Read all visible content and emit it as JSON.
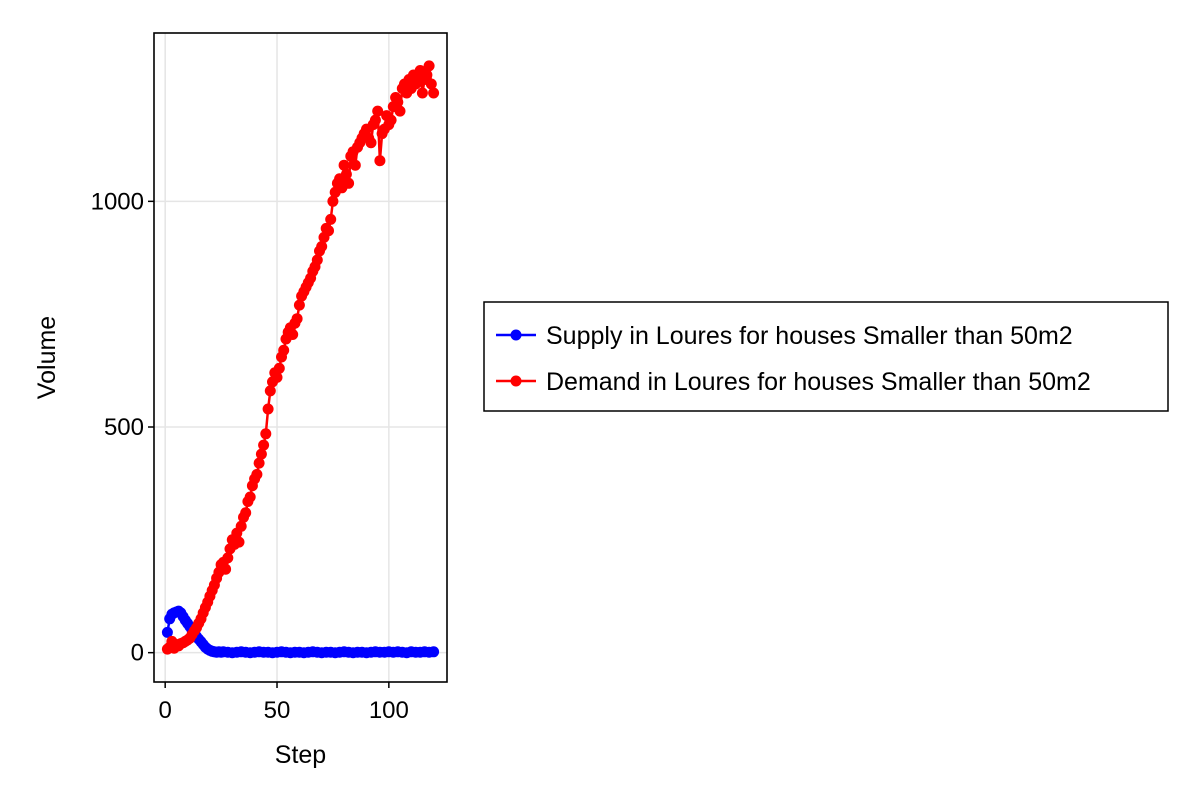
{
  "chart_data": {
    "type": "line",
    "xlabel": "Step",
    "ylabel": "Volume",
    "xlim": [
      -5,
      126
    ],
    "ylim": [
      -65,
      1373
    ],
    "x_ticks": [
      0,
      50,
      100
    ],
    "y_ticks": [
      0,
      500,
      1000
    ],
    "x_tick_labels": [
      "0",
      "50",
      "100"
    ],
    "y_tick_labels": [
      "0",
      "500",
      "1000"
    ],
    "grid": true,
    "legend_placement": "right",
    "series": [
      {
        "name": "Supply in Loures for houses Smaller than 50m2",
        "color": "#0000ff",
        "marker": "circle",
        "x": [
          1,
          2,
          3,
          4,
          5,
          6,
          7,
          8,
          9,
          10,
          11,
          12,
          13,
          14,
          15,
          16,
          17,
          18,
          19,
          20,
          21,
          22,
          23,
          24,
          25,
          26,
          28,
          30,
          32,
          34,
          36,
          38,
          40,
          42,
          44,
          46,
          48,
          50,
          52,
          54,
          56,
          58,
          60,
          62,
          64,
          66,
          68,
          70,
          72,
          74,
          76,
          78,
          80,
          82,
          84,
          86,
          88,
          90,
          92,
          94,
          96,
          98,
          100,
          102,
          104,
          106,
          108,
          110,
          112,
          114,
          116,
          118,
          120
        ],
        "y": [
          45,
          75,
          85,
          88,
          90,
          92,
          88,
          80,
          72,
          65,
          58,
          50,
          43,
          36,
          30,
          24,
          18,
          12,
          8,
          5,
          3,
          2,
          1,
          2,
          1,
          2,
          1,
          0,
          1,
          2,
          1,
          0,
          1,
          2,
          1,
          1,
          0,
          1,
          2,
          1,
          0,
          1,
          1,
          0,
          1,
          2,
          1,
          0,
          1,
          1,
          0,
          1,
          2,
          1,
          0,
          1,
          1,
          0,
          1,
          2,
          1,
          1,
          2,
          1,
          2,
          1,
          0,
          2,
          1,
          1,
          2,
          1,
          2
        ]
      },
      {
        "name": "Demand in Loures for houses Smaller than 50m2",
        "color": "#ff0000",
        "marker": "circle",
        "x": [
          1,
          2,
          3,
          4,
          5,
          6,
          7,
          8,
          9,
          10,
          11,
          12,
          13,
          14,
          15,
          16,
          17,
          18,
          19,
          20,
          21,
          22,
          23,
          24,
          25,
          26,
          27,
          28,
          29,
          30,
          31,
          32,
          33,
          34,
          35,
          36,
          37,
          38,
          39,
          40,
          41,
          42,
          43,
          44,
          45,
          46,
          47,
          48,
          49,
          50,
          51,
          52,
          53,
          54,
          55,
          56,
          57,
          58,
          59,
          60,
          61,
          62,
          63,
          64,
          65,
          66,
          67,
          68,
          69,
          70,
          71,
          72,
          73,
          74,
          75,
          76,
          77,
          78,
          79,
          80,
          81,
          82,
          83,
          84,
          85,
          86,
          87,
          88,
          89,
          90,
          91,
          92,
          93,
          94,
          95,
          96,
          97,
          98,
          99,
          100,
          101,
          102,
          103,
          104,
          105,
          106,
          107,
          108,
          109,
          110,
          111,
          112,
          113,
          114,
          115,
          116,
          117,
          118,
          119,
          120
        ],
        "y": [
          8,
          12,
          25,
          10,
          18,
          15,
          20,
          22,
          25,
          28,
          32,
          40,
          48,
          55,
          65,
          75,
          88,
          100,
          112,
          125,
          138,
          150,
          165,
          178,
          195,
          200,
          185,
          210,
          230,
          250,
          240,
          265,
          245,
          280,
          300,
          310,
          335,
          345,
          370,
          385,
          395,
          420,
          440,
          460,
          485,
          540,
          580,
          600,
          620,
          610,
          630,
          655,
          670,
          695,
          710,
          720,
          705,
          730,
          740,
          770,
          790,
          800,
          810,
          820,
          830,
          845,
          855,
          870,
          890,
          900,
          920,
          940,
          935,
          960,
          1000,
          1020,
          1040,
          1050,
          1030,
          1080,
          1060,
          1040,
          1100,
          1110,
          1080,
          1120,
          1130,
          1140,
          1150,
          1160,
          1140,
          1130,
          1170,
          1180,
          1200,
          1090,
          1150,
          1160,
          1190,
          1170,
          1180,
          1210,
          1230,
          1220,
          1200,
          1250,
          1260,
          1240,
          1270,
          1250,
          1280,
          1260,
          1270,
          1290,
          1240,
          1270,
          1280,
          1300,
          1260,
          1240
        ]
      }
    ]
  }
}
